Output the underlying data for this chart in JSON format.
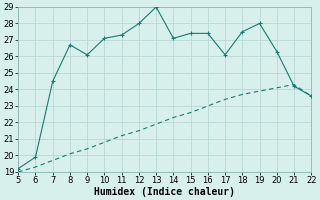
{
  "xlabel": "Humidex (Indice chaleur)",
  "xlim": [
    5,
    22
  ],
  "ylim": [
    19,
    29
  ],
  "xticks": [
    5,
    6,
    7,
    8,
    9,
    10,
    11,
    12,
    13,
    14,
    15,
    16,
    17,
    18,
    19,
    20,
    21,
    22
  ],
  "yticks": [
    19,
    20,
    21,
    22,
    23,
    24,
    25,
    26,
    27,
    28,
    29
  ],
  "curve1_x": [
    5,
    6,
    7,
    8,
    9,
    10,
    11,
    12,
    13,
    14,
    15,
    16,
    17,
    18,
    19,
    20,
    21,
    22
  ],
  "curve1_y": [
    19.2,
    19.9,
    24.5,
    26.7,
    26.1,
    27.1,
    27.3,
    28.0,
    29.0,
    27.1,
    27.4,
    27.4,
    26.1,
    27.5,
    28.0,
    26.3,
    24.2,
    23.6
  ],
  "curve2_x": [
    5,
    6,
    7,
    8,
    9,
    10,
    11,
    12,
    13,
    14,
    15,
    16,
    17,
    18,
    19,
    20,
    21,
    22
  ],
  "curve2_y": [
    19.0,
    19.3,
    19.7,
    20.1,
    20.4,
    20.8,
    21.2,
    21.5,
    21.9,
    22.3,
    22.6,
    23.0,
    23.4,
    23.7,
    23.9,
    24.1,
    24.3,
    23.6
  ],
  "line_color": "#1a7a6e",
  "bg_color": "#d8f0ec",
  "grid_color": "#b8d8d4",
  "markersize": 3,
  "tick_fontsize": 6,
  "label_fontsize": 7
}
